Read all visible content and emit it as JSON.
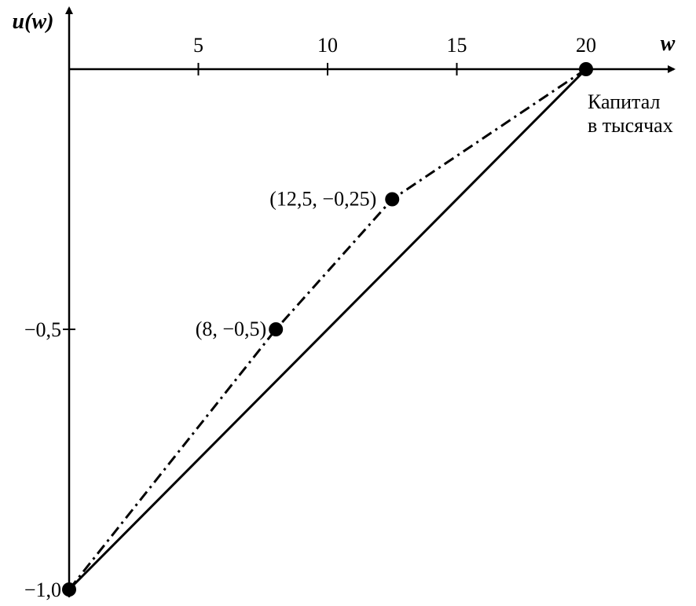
{
  "chart_data": {
    "type": "line",
    "ylabel": "u(w)",
    "xlabel": "w",
    "annotation": [
      "Капитал",
      "в тысячах"
    ],
    "xlim": [
      0,
      23
    ],
    "ylim": [
      -1.0,
      0
    ],
    "x_ticks": [
      {
        "value": 5,
        "label": "5"
      },
      {
        "value": 10,
        "label": "10"
      },
      {
        "value": 15,
        "label": "15"
      },
      {
        "value": 20,
        "label": "20"
      }
    ],
    "y_ticks": [
      {
        "value": -0.5,
        "label": "−0,5"
      },
      {
        "value": -1.0,
        "label": "−1,0"
      }
    ],
    "series": [
      {
        "style": "solid",
        "points": [
          {
            "x": 0,
            "y": -1.0
          },
          {
            "x": 20,
            "y": 0
          }
        ]
      },
      {
        "style": "dash-dot",
        "points": [
          {
            "x": 0,
            "y": -1.0
          },
          {
            "x": 8,
            "y": -0.5
          },
          {
            "x": 12.5,
            "y": -0.25
          },
          {
            "x": 20,
            "y": 0
          }
        ]
      }
    ],
    "marked_points": [
      {
        "x": 0,
        "y": -1.0,
        "label": ""
      },
      {
        "x": 8,
        "y": -0.5,
        "label": "(8, −0,5)"
      },
      {
        "x": 12.5,
        "y": -0.25,
        "label": "(12,5, −0,25)"
      },
      {
        "x": 20,
        "y": 0,
        "label": ""
      }
    ]
  }
}
